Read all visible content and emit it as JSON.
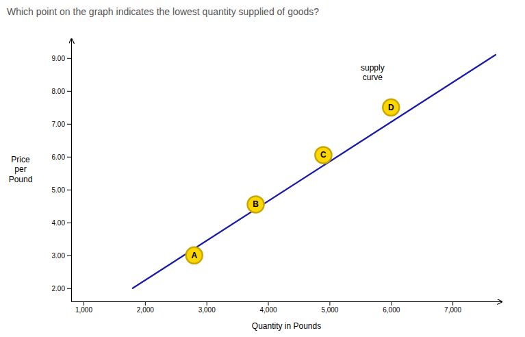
{
  "chart_data": {
    "type": "line",
    "title": "Which point on the graph indicates the lowest quantity supplied of goods?",
    "x_label": "Quantity in Pounds",
    "y_label": "Price\nper\nPound",
    "xlim": [
      800,
      7800
    ],
    "ylim": [
      1.6,
      9.6
    ],
    "xticks": [
      {
        "value": 1000,
        "label": "1,000"
      },
      {
        "value": 2000,
        "label": "2,000"
      },
      {
        "value": 3000,
        "label": "3,000"
      },
      {
        "value": 4000,
        "label": "4,000"
      },
      {
        "value": 5000,
        "label": "5,000"
      },
      {
        "value": 6000,
        "label": "6,000"
      },
      {
        "value": 7000,
        "label": "7,000"
      }
    ],
    "yticks": [
      {
        "value": 2.0,
        "label": "2.00"
      },
      {
        "value": 3.0,
        "label": "3.00"
      },
      {
        "value": 4.0,
        "label": "4.00"
      },
      {
        "value": 5.0,
        "label": "5.00"
      },
      {
        "value": 6.0,
        "label": "6.00"
      },
      {
        "value": 7.0,
        "label": "7.00"
      },
      {
        "value": 8.0,
        "label": "8.00"
      },
      {
        "value": 9.0,
        "label": "9.00"
      }
    ],
    "grid": false,
    "series": [
      {
        "type": "line",
        "color": "#1a1aaa",
        "x": [
          1800,
          7700
        ],
        "values": [
          2.0,
          9.1
        ]
      },
      {
        "type": "scatter",
        "color": "#FFD700",
        "x": [
          2800,
          3800,
          4900,
          6000
        ],
        "values": [
          3.0,
          4.55,
          6.05,
          7.5
        ],
        "labels": [
          "A",
          "B",
          "C",
          "D"
        ]
      }
    ],
    "annotations": [
      {
        "text": "supply\ncurve",
        "x": 5700,
        "y": 8.85
      }
    ]
  }
}
